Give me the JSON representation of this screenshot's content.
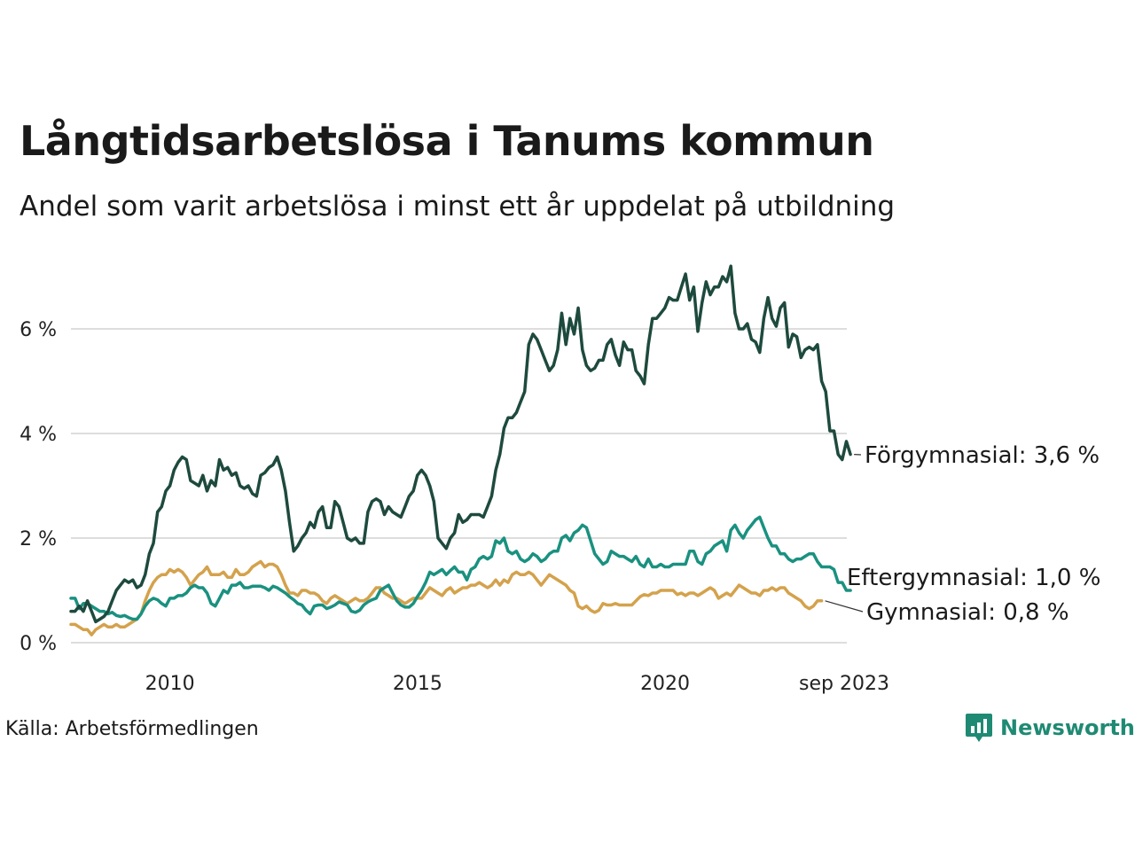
{
  "header": {
    "title": "Långtidsarbetslösa i Tanums kommun",
    "subtitle": "Andel som varit arbetslösa i minst ett år uppdelat på utbildning"
  },
  "footer": {
    "source": "Källa: Arbetsförmedlingen",
    "brand": "Newsworthy"
  },
  "colors": {
    "forgymnasial": "#1e4a3e",
    "eftergymnasial": "#1a9180",
    "gymnasial": "#d4a24c",
    "grid": "#dddddd"
  },
  "chart_data": {
    "type": "line",
    "title": "Långtidsarbetslösa i Tanums kommun",
    "subtitle": "Andel som varit arbetslösa i minst ett år uppdelat på utbildning",
    "xlabel": "",
    "ylabel": "",
    "x_start": 2008.0,
    "x_step": 0.0833,
    "xlim": [
      2008.0,
      2023.67
    ],
    "ylim": [
      0,
      7.5
    ],
    "y_ticks": [
      0,
      2,
      4,
      6
    ],
    "y_tick_labels": [
      "0 %",
      "2 %",
      "4 %",
      "6 %"
    ],
    "x_ticks": [
      2010,
      2015,
      2020,
      2023.67
    ],
    "x_tick_labels": [
      "2010",
      "2015",
      "2020",
      "sep 2023"
    ],
    "grid": true,
    "series": [
      {
        "key": "forgymnasial",
        "name": "Förgymnasial",
        "label": "Förgymnasial: 3,6 %",
        "values": [
          0.6,
          0.6,
          0.7,
          0.6,
          0.8,
          0.6,
          0.4,
          0.45,
          0.5,
          0.6,
          0.8,
          1.0,
          1.1,
          1.2,
          1.15,
          1.2,
          1.05,
          1.1,
          1.3,
          1.7,
          1.9,
          2.5,
          2.6,
          2.9,
          3.0,
          3.3,
          3.45,
          3.55,
          3.5,
          3.1,
          3.05,
          3.0,
          3.2,
          2.9,
          3.1,
          3.0,
          3.5,
          3.3,
          3.35,
          3.2,
          3.25,
          3.0,
          2.95,
          3.0,
          2.85,
          2.8,
          3.2,
          3.25,
          3.35,
          3.4,
          3.55,
          3.3,
          2.9,
          2.3,
          1.75,
          1.85,
          2.0,
          2.1,
          2.3,
          2.2,
          2.5,
          2.6,
          2.2,
          2.2,
          2.7,
          2.6,
          2.3,
          2.0,
          1.95,
          2.0,
          1.9,
          1.9,
          2.5,
          2.7,
          2.75,
          2.7,
          2.45,
          2.6,
          2.5,
          2.45,
          2.4,
          2.6,
          2.8,
          2.9,
          3.2,
          3.3,
          3.2,
          3.0,
          2.7,
          2.0,
          1.9,
          1.8,
          2.0,
          2.1,
          2.45,
          2.3,
          2.35,
          2.45,
          2.45,
          2.45,
          2.4,
          2.6,
          2.8,
          3.3,
          3.6,
          4.1,
          4.3,
          4.3,
          4.4,
          4.6,
          4.8,
          5.7,
          5.9,
          5.8,
          5.6,
          5.4,
          5.2,
          5.3,
          5.6,
          6.3,
          5.7,
          6.2,
          5.9,
          6.4,
          5.6,
          5.3,
          5.2,
          5.25,
          5.4,
          5.4,
          5.7,
          5.8,
          5.5,
          5.3,
          5.75,
          5.6,
          5.6,
          5.2,
          5.1,
          4.95,
          5.7,
          6.2,
          6.2,
          6.3,
          6.4,
          6.6,
          6.55,
          6.55,
          6.8,
          7.05,
          6.55,
          6.8,
          5.95,
          6.5,
          6.9,
          6.65,
          6.8,
          6.8,
          7.0,
          6.9,
          7.2,
          6.3,
          6.0,
          6.0,
          6.1,
          5.8,
          5.75,
          5.55,
          6.2,
          6.6,
          6.2,
          6.05,
          6.4,
          6.5,
          5.65,
          5.9,
          5.85,
          5.45,
          5.6,
          5.65,
          5.6,
          5.7,
          5.0,
          4.8,
          4.05,
          4.05,
          3.6,
          3.5,
          3.85,
          3.6
        ],
        "label_value": 3.6
      },
      {
        "key": "eftergymnasial",
        "name": "Eftergymnasial",
        "label": "Eftergymnasial: 1,0 %",
        "values": [
          0.85,
          0.85,
          0.65,
          0.75,
          0.75,
          0.7,
          0.65,
          0.6,
          0.6,
          0.55,
          0.58,
          0.52,
          0.5,
          0.52,
          0.48,
          0.45,
          0.45,
          0.55,
          0.7,
          0.8,
          0.85,
          0.82,
          0.75,
          0.7,
          0.85,
          0.85,
          0.9,
          0.9,
          0.95,
          1.05,
          1.1,
          1.05,
          1.05,
          0.95,
          0.75,
          0.7,
          0.85,
          1.0,
          0.95,
          1.1,
          1.1,
          1.15,
          1.05,
          1.05,
          1.08,
          1.08,
          1.08,
          1.05,
          1.0,
          1.08,
          1.05,
          1.0,
          0.95,
          0.88,
          0.82,
          0.75,
          0.72,
          0.62,
          0.55,
          0.7,
          0.72,
          0.72,
          0.65,
          0.68,
          0.72,
          0.78,
          0.75,
          0.72,
          0.6,
          0.58,
          0.62,
          0.72,
          0.78,
          0.82,
          0.85,
          1.0,
          1.05,
          1.1,
          0.95,
          0.8,
          0.72,
          0.68,
          0.68,
          0.75,
          0.88,
          1.0,
          1.15,
          1.35,
          1.3,
          1.35,
          1.4,
          1.3,
          1.38,
          1.45,
          1.35,
          1.35,
          1.2,
          1.4,
          1.45,
          1.6,
          1.65,
          1.6,
          1.65,
          1.95,
          1.9,
          2.0,
          1.75,
          1.7,
          1.75,
          1.6,
          1.55,
          1.6,
          1.7,
          1.65,
          1.55,
          1.6,
          1.7,
          1.75,
          1.75,
          2.0,
          2.05,
          1.95,
          2.1,
          2.15,
          2.25,
          2.2,
          1.95,
          1.7,
          1.6,
          1.5,
          1.55,
          1.75,
          1.7,
          1.65,
          1.65,
          1.6,
          1.55,
          1.65,
          1.5,
          1.45,
          1.6,
          1.45,
          1.45,
          1.5,
          1.45,
          1.45,
          1.5,
          1.5,
          1.5,
          1.5,
          1.75,
          1.75,
          1.55,
          1.5,
          1.7,
          1.75,
          1.85,
          1.9,
          1.95,
          1.75,
          2.15,
          2.25,
          2.1,
          2.0,
          2.15,
          2.25,
          2.35,
          2.4,
          2.2,
          2.0,
          1.85,
          1.85,
          1.7,
          1.7,
          1.6,
          1.55,
          1.6,
          1.6,
          1.65,
          1.7,
          1.7,
          1.55,
          1.45,
          1.45,
          1.45,
          1.4,
          1.15,
          1.15,
          1.0,
          1.0
        ],
        "label_value": 1.0
      },
      {
        "key": "gymnasial",
        "name": "Gymnasial",
        "label": "Gymnasial: 0,8 %",
        "values": [
          0.35,
          0.35,
          0.3,
          0.25,
          0.25,
          0.15,
          0.25,
          0.3,
          0.35,
          0.3,
          0.3,
          0.35,
          0.3,
          0.3,
          0.35,
          0.4,
          0.45,
          0.55,
          0.8,
          1.0,
          1.15,
          1.25,
          1.3,
          1.3,
          1.4,
          1.35,
          1.4,
          1.35,
          1.25,
          1.1,
          1.2,
          1.3,
          1.35,
          1.45,
          1.3,
          1.3,
          1.3,
          1.35,
          1.25,
          1.25,
          1.4,
          1.3,
          1.3,
          1.35,
          1.45,
          1.5,
          1.55,
          1.45,
          1.5,
          1.5,
          1.45,
          1.3,
          1.1,
          0.95,
          0.95,
          0.9,
          1.0,
          1.0,
          0.95,
          0.95,
          0.9,
          0.8,
          0.75,
          0.85,
          0.9,
          0.85,
          0.8,
          0.75,
          0.8,
          0.85,
          0.8,
          0.8,
          0.85,
          0.95,
          1.05,
          1.05,
          0.95,
          0.9,
          0.85,
          0.85,
          0.8,
          0.75,
          0.8,
          0.85,
          0.85,
          0.85,
          0.95,
          1.05,
          1.0,
          0.95,
          0.9,
          1.0,
          1.05,
          0.95,
          1.0,
          1.05,
          1.05,
          1.1,
          1.1,
          1.15,
          1.1,
          1.05,
          1.1,
          1.2,
          1.1,
          1.2,
          1.15,
          1.3,
          1.35,
          1.3,
          1.3,
          1.35,
          1.3,
          1.2,
          1.1,
          1.2,
          1.3,
          1.25,
          1.2,
          1.15,
          1.1,
          1.0,
          0.95,
          0.7,
          0.65,
          0.7,
          0.62,
          0.58,
          0.62,
          0.75,
          0.72,
          0.72,
          0.75,
          0.72,
          0.72,
          0.72,
          0.72,
          0.8,
          0.88,
          0.92,
          0.9,
          0.95,
          0.95,
          1.0,
          1.0,
          1.0,
          1.0,
          0.92,
          0.95,
          0.9,
          0.95,
          0.95,
          0.9,
          0.95,
          1.0,
          1.05,
          1.0,
          0.85,
          0.9,
          0.95,
          0.9,
          1.0,
          1.1,
          1.05,
          1.0,
          0.95,
          0.95,
          0.9,
          1.0,
          1.0,
          1.05,
          1.0,
          1.05,
          1.05,
          0.95,
          0.9,
          0.85,
          0.8,
          0.7,
          0.65,
          0.7,
          0.8,
          0.8
        ],
        "label_value": 0.8
      }
    ]
  }
}
